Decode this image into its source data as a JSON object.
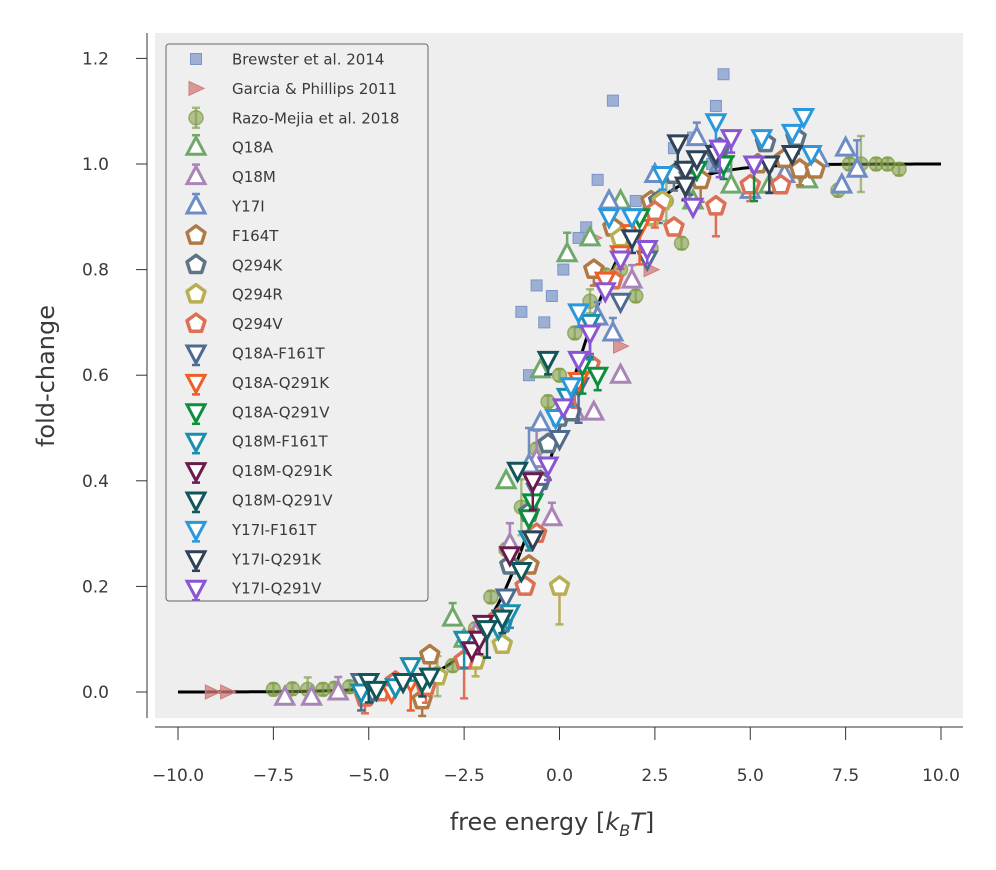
{
  "chart_data": {
    "type": "scatter",
    "title": "",
    "xlabel": "free energy [k_B T]",
    "xlabel_parts": {
      "pre": "free energy [",
      "k": "k",
      "sub": "B",
      "T": "T",
      "post": "]"
    },
    "ylabel": "fold-change",
    "xlim": [
      -10.6,
      10.6
    ],
    "ylim": [
      -0.05,
      1.25
    ],
    "x_ticks": [
      -10.0,
      -7.5,
      -5.0,
      -2.5,
      0.0,
      2.5,
      5.0,
      7.5,
      10.0
    ],
    "x_tick_labels": [
      "−10.0",
      "−7.5",
      "−5.0",
      "−2.5",
      "0.0",
      "2.5",
      "5.0",
      "7.5",
      "10.0"
    ],
    "y_ticks": [
      0.0,
      0.2,
      0.4,
      0.6,
      0.8,
      1.0,
      1.2
    ],
    "y_tick_labels": [
      "0.0",
      "0.2",
      "0.4",
      "0.6",
      "0.8",
      "1.0",
      "1.2"
    ],
    "grid": false,
    "background": "#eeeeee",
    "legend_position": "upper-left",
    "theory_curve": {
      "name": "theory",
      "color": "#000000",
      "xrange": [
        -10,
        10
      ],
      "function": "1/(1+exp(-x))"
    },
    "series": [
      {
        "name": "Brewster et al. 2014",
        "marker": "square",
        "color": "#7a95c9",
        "x": [
          -1.0,
          -0.6,
          -0.4,
          -0.2,
          0.1,
          0.7,
          1.0,
          1.4,
          3.0,
          3.5,
          4.1,
          4.3,
          -0.8,
          0.5,
          2.0,
          4.0
        ],
        "y": [
          0.72,
          0.77,
          0.7,
          0.75,
          0.8,
          0.88,
          0.97,
          1.12,
          1.03,
          1.05,
          1.11,
          1.17,
          0.6,
          0.86,
          0.93,
          1.0
        ]
      },
      {
        "name": "Garcia & Phillips 2011",
        "marker": "triangle-right",
        "color": "#d27b7b",
        "x": [
          -9.1,
          -8.7,
          1.6,
          2.4,
          0.9
        ],
        "y": [
          0.0,
          0.0,
          0.655,
          0.8,
          0.86
        ]
      },
      {
        "name": "Razo-Mejia et al. 2018",
        "marker": "circle-err",
        "color": "#7b9a3f",
        "x": [
          -7.5,
          -7.0,
          -6.6,
          -6.2,
          -5.9,
          -5.5,
          -5.2,
          -3.2,
          -2.8,
          -2.2,
          -1.8,
          -1.4,
          -1.0,
          -0.6,
          -0.3,
          0.0,
          0.4,
          0.8,
          1.2,
          1.6,
          2.0,
          2.4,
          2.8,
          3.2,
          6.4,
          7.3,
          7.6,
          7.9,
          8.3,
          8.6,
          8.9
        ],
        "y": [
          0.005,
          0.006,
          0.005,
          0.005,
          0.007,
          0.01,
          0.01,
          0.03,
          0.05,
          0.12,
          0.18,
          0.27,
          0.35,
          0.46,
          0.55,
          0.6,
          0.68,
          0.74,
          0.79,
          0.8,
          0.75,
          0.84,
          0.93,
          0.85,
          0.98,
          0.95,
          1.0,
          1.0,
          1.0,
          1.0,
          0.99
        ]
      },
      {
        "name": "Q18A",
        "marker": "triangle-up",
        "color": "#6fa86a",
        "x": [
          -2.8,
          -2.5,
          -0.5,
          0.2,
          0.8,
          1.6,
          2.3,
          3.5,
          4.5,
          5.5,
          6.5,
          -1.4
        ],
        "y": [
          0.14,
          0.1,
          0.61,
          0.83,
          0.86,
          0.93,
          0.91,
          0.93,
          0.96,
          0.96,
          0.97,
          0.4
        ]
      },
      {
        "name": "Q18M",
        "marker": "triangle-up",
        "color": "#a984b6",
        "x": [
          -7.2,
          -6.5,
          -5.8,
          -2.2,
          -1.3,
          -0.2,
          0.4,
          1.6,
          1.9,
          -0.6,
          0.9
        ],
        "y": [
          -0.01,
          -0.01,
          0.0,
          0.11,
          0.28,
          0.33,
          0.53,
          0.6,
          0.78,
          0.44,
          0.53
        ]
      },
      {
        "name": "Y17I",
        "marker": "triangle-up",
        "color": "#6f8cc4",
        "x": [
          -0.8,
          1.0,
          1.3,
          2.5,
          3.6,
          4.2,
          5.0,
          5.9,
          6.8,
          7.4,
          7.8,
          7.5,
          -0.5,
          1.4
        ],
        "y": [
          0.43,
          0.71,
          0.93,
          0.98,
          1.05,
          1.0,
          0.95,
          0.98,
          1.01,
          0.96,
          0.99,
          1.03,
          0.51,
          0.68
        ]
      },
      {
        "name": "F164T",
        "marker": "pentagon",
        "color": "#b07a46",
        "x": [
          -3.6,
          -3.4,
          -0.8,
          0.9,
          1.4,
          2.4,
          3.7,
          5.2,
          5.9,
          6.3,
          6.7
        ],
        "y": [
          -0.015,
          0.07,
          0.24,
          0.8,
          0.88,
          0.93,
          0.97,
          1.0,
          1.01,
          0.99,
          0.99
        ]
      },
      {
        "name": "Q294K",
        "marker": "pentagon",
        "color": "#5d7485",
        "x": [
          -1.5,
          -1.3,
          -0.8,
          -0.5,
          -0.3,
          0.0,
          0.3,
          2.6,
          3.0,
          4.2,
          5.4,
          6.2
        ],
        "y": [
          0.13,
          0.24,
          0.34,
          0.4,
          0.47,
          0.52,
          0.53,
          0.93,
          0.98,
          1.03,
          1.04,
          1.05
        ]
      },
      {
        "name": "Q294R",
        "marker": "pentagon",
        "color": "#b8af53",
        "x": [
          -3.2,
          -2.2,
          -1.5,
          0.0,
          1.6,
          2.4,
          2.7
        ],
        "y": [
          0.03,
          0.06,
          0.09,
          0.2,
          0.86,
          0.9,
          0.93
        ]
      },
      {
        "name": "Q294V",
        "marker": "pentagon",
        "color": "#dc6f55",
        "x": [
          -5.1,
          -4.7,
          -4.3,
          -3.5,
          -2.5,
          -2.3,
          -1.6,
          -0.9,
          -0.6,
          0.4,
          0.8,
          1.4,
          2.5,
          3.0,
          4.1,
          5.0,
          5.8
        ],
        "y": [
          -0.01,
          0.0,
          0.02,
          0.01,
          0.06,
          0.1,
          0.14,
          0.2,
          0.3,
          0.58,
          0.62,
          0.78,
          0.91,
          0.88,
          0.92,
          0.96,
          0.96
        ]
      },
      {
        "name": "Q18A-F161T",
        "marker": "triangle-down",
        "color": "#4e6a8e",
        "x": [
          -5.2,
          -4.9,
          -1.4,
          -0.6,
          0.0,
          0.5,
          1.6,
          2.3,
          3.4,
          4.1
        ],
        "y": [
          0.02,
          0.0,
          0.18,
          0.38,
          0.48,
          0.58,
          0.74,
          0.82,
          0.97,
          1.01
        ]
      },
      {
        "name": "Q18A-Q291K",
        "marker": "triangle-down",
        "color": "#ee5f28",
        "x": [
          -4.4,
          -3.9,
          0.5,
          1.2,
          1.6,
          1.9,
          2.1,
          3.3
        ],
        "y": [
          0.0,
          0.02,
          0.59,
          0.78,
          0.83,
          0.87,
          0.88,
          0.96
        ]
      },
      {
        "name": "Q18A-Q291V",
        "marker": "triangle-down",
        "color": "#0b8f3a",
        "x": [
          -0.7,
          -0.8,
          0.6,
          1.0,
          2.1,
          3.6,
          4.3,
          5.1
        ],
        "y": [
          0.36,
          0.33,
          0.62,
          0.6,
          0.9,
          0.99,
          1.0,
          1.0
        ]
      },
      {
        "name": "Q18M-F161T",
        "marker": "triangle-down",
        "color": "#1a8eaf",
        "x": [
          -5.2,
          -4.3,
          -3.9,
          -2.5,
          -1.6,
          -1.3,
          -0.8,
          0.2,
          0.8
        ],
        "y": [
          0.0,
          0.01,
          0.05,
          0.1,
          0.12,
          0.15,
          0.29,
          0.56,
          0.7
        ]
      },
      {
        "name": "Q18M-Q291K",
        "marker": "triangle-down",
        "color": "#6b1a4c",
        "x": [
          -2.3,
          -2.1,
          -2.0,
          -1.3,
          -0.7
        ],
        "y": [
          0.08,
          0.1,
          0.13,
          0.26,
          0.4
        ]
      },
      {
        "name": "Q18M-Q291V",
        "marker": "triangle-down",
        "color": "#11565a",
        "x": [
          -5.0,
          -4.8,
          -4.1,
          -3.6,
          -3.4,
          -1.9,
          -1.5,
          -1.0,
          -1.1,
          -0.3
        ],
        "y": [
          0.02,
          0.005,
          0.02,
          0.02,
          0.03,
          0.12,
          0.14,
          0.23,
          0.42,
          0.63
        ]
      },
      {
        "name": "Y17I-F161T",
        "marker": "triangle-down",
        "color": "#2a98dc",
        "x": [
          -0.1,
          0.3,
          0.5,
          1.3,
          1.9,
          2.7,
          4.1,
          5.3,
          6.1,
          6.4,
          6.6
        ],
        "y": [
          0.52,
          0.58,
          0.72,
          0.9,
          0.9,
          0.98,
          1.08,
          1.05,
          1.06,
          1.09,
          1.02
        ]
      },
      {
        "name": "Y17I-Q291K",
        "marker": "triangle-down",
        "color": "#2f4257",
        "x": [
          -0.7,
          1.9,
          3.1,
          3.3,
          3.3,
          3.6,
          4.1,
          5.5,
          6.1
        ],
        "y": [
          0.29,
          0.86,
          1.04,
          0.99,
          0.96,
          1.01,
          1.02,
          1.0,
          1.02
        ]
      },
      {
        "name": "Y17I-Q291V",
        "marker": "triangle-down",
        "color": "#8a55d4",
        "x": [
          -0.3,
          0.1,
          0.5,
          0.8,
          1.2,
          1.6,
          2.3,
          3.5,
          4.2,
          4.5,
          5.1
        ],
        "y": [
          0.43,
          0.54,
          0.63,
          0.68,
          0.76,
          0.82,
          0.84,
          0.92,
          1.03,
          1.05,
          1.0
        ]
      }
    ]
  }
}
